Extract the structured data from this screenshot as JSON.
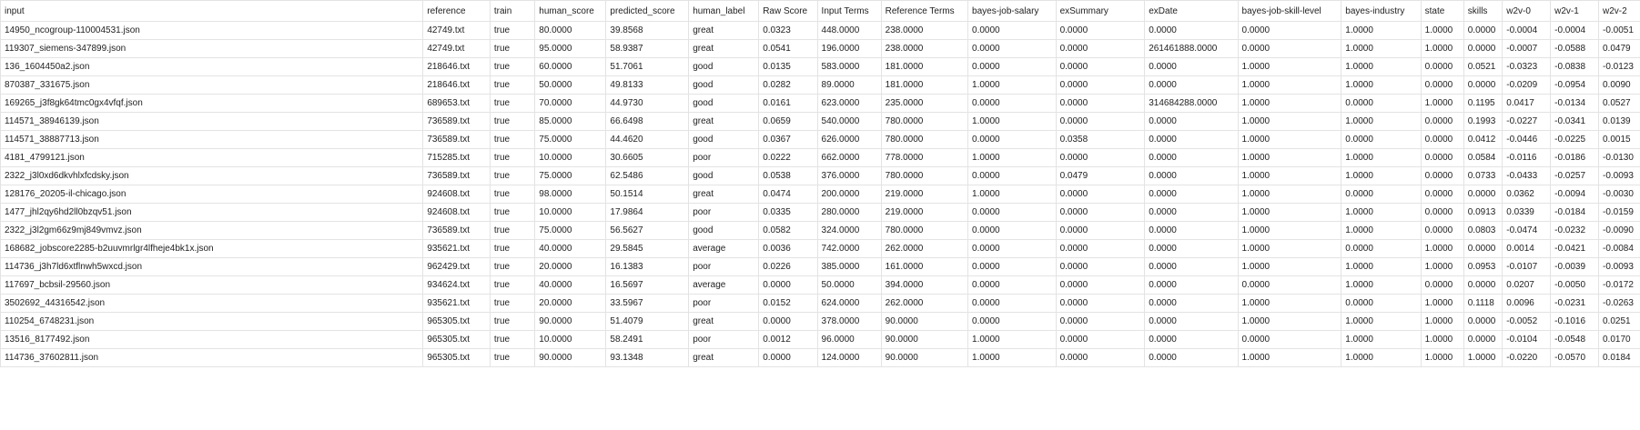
{
  "columns": [
    "input",
    "reference",
    "train",
    "human_score",
    "predicted_score",
    "human_label",
    "Raw Score",
    "Input Terms",
    "Reference Terms",
    "bayes-job-salary",
    "exSummary",
    "exDate",
    "bayes-job-skill-level",
    "bayes-industry",
    "state",
    "skills",
    "w2v-0",
    "w2v-1",
    "w2v-2"
  ],
  "rows": [
    [
      "14950_ncogroup-110004531.json",
      "42749.txt",
      "true",
      "80.0000",
      "39.8568",
      "great",
      "0.0323",
      "448.0000",
      "238.0000",
      "0.0000",
      "0.0000",
      "0.0000",
      "0.0000",
      "1.0000",
      "1.0000",
      "0.0000",
      "-0.0004",
      "-0.0004",
      "-0.0051"
    ],
    [
      "119307_siemens-347899.json",
      "42749.txt",
      "true",
      "95.0000",
      "58.9387",
      "great",
      "0.0541",
      "196.0000",
      "238.0000",
      "0.0000",
      "0.0000",
      "261461888.0000",
      "0.0000",
      "1.0000",
      "1.0000",
      "0.0000",
      "-0.0007",
      "-0.0588",
      "0.0479"
    ],
    [
      "136_1604450a2.json",
      "218646.txt",
      "true",
      "60.0000",
      "51.7061",
      "good",
      "0.0135",
      "583.0000",
      "181.0000",
      "0.0000",
      "0.0000",
      "0.0000",
      "1.0000",
      "1.0000",
      "0.0000",
      "0.0521",
      "-0.0323",
      "-0.0838",
      "-0.0123"
    ],
    [
      "870387_331675.json",
      "218646.txt",
      "true",
      "50.0000",
      "49.8133",
      "good",
      "0.0282",
      "89.0000",
      "181.0000",
      "1.0000",
      "0.0000",
      "0.0000",
      "1.0000",
      "1.0000",
      "0.0000",
      "0.0000",
      "-0.0209",
      "-0.0954",
      "0.0090"
    ],
    [
      "169265_j3f8gk64tmc0gx4vfqf.json",
      "689653.txt",
      "true",
      "70.0000",
      "44.9730",
      "good",
      "0.0161",
      "623.0000",
      "235.0000",
      "0.0000",
      "0.0000",
      "314684288.0000",
      "1.0000",
      "0.0000",
      "1.0000",
      "0.1195",
      "0.0417",
      "-0.0134",
      "0.0527"
    ],
    [
      "114571_38946139.json",
      "736589.txt",
      "true",
      "85.0000",
      "66.6498",
      "great",
      "0.0659",
      "540.0000",
      "780.0000",
      "1.0000",
      "0.0000",
      "0.0000",
      "1.0000",
      "1.0000",
      "0.0000",
      "0.1993",
      "-0.0227",
      "-0.0341",
      "0.0139"
    ],
    [
      "114571_38887713.json",
      "736589.txt",
      "true",
      "75.0000",
      "44.4620",
      "good",
      "0.0367",
      "626.0000",
      "780.0000",
      "0.0000",
      "0.0358",
      "0.0000",
      "1.0000",
      "0.0000",
      "0.0000",
      "0.0412",
      "-0.0446",
      "-0.0225",
      "0.0015"
    ],
    [
      "4181_4799121.json",
      "715285.txt",
      "true",
      "10.0000",
      "30.6605",
      "poor",
      "0.0222",
      "662.0000",
      "778.0000",
      "1.0000",
      "0.0000",
      "0.0000",
      "1.0000",
      "1.0000",
      "0.0000",
      "0.0584",
      "-0.0116",
      "-0.0186",
      "-0.0130"
    ],
    [
      "2322_j3l0xd6dkvhlxfcdsky.json",
      "736589.txt",
      "true",
      "75.0000",
      "62.5486",
      "good",
      "0.0538",
      "376.0000",
      "780.0000",
      "0.0000",
      "0.0479",
      "0.0000",
      "1.0000",
      "1.0000",
      "0.0000",
      "0.0733",
      "-0.0433",
      "-0.0257",
      "-0.0093"
    ],
    [
      "128176_20205-il-chicago.json",
      "924608.txt",
      "true",
      "98.0000",
      "50.1514",
      "great",
      "0.0474",
      "200.0000",
      "219.0000",
      "1.0000",
      "0.0000",
      "0.0000",
      "1.0000",
      "0.0000",
      "0.0000",
      "0.0000",
      "0.0362",
      "-0.0094",
      "-0.0030"
    ],
    [
      "1477_jhl2qy6hd2ll0bzqv51.json",
      "924608.txt",
      "true",
      "10.0000",
      "17.9864",
      "poor",
      "0.0335",
      "280.0000",
      "219.0000",
      "0.0000",
      "0.0000",
      "0.0000",
      "1.0000",
      "1.0000",
      "0.0000",
      "0.0913",
      "0.0339",
      "-0.0184",
      "-0.0159"
    ],
    [
      "2322_j3l2gm66z9mj849vmvz.json",
      "736589.txt",
      "true",
      "75.0000",
      "56.5627",
      "good",
      "0.0582",
      "324.0000",
      "780.0000",
      "0.0000",
      "0.0000",
      "0.0000",
      "1.0000",
      "1.0000",
      "0.0000",
      "0.0803",
      "-0.0474",
      "-0.0232",
      "-0.0090"
    ],
    [
      "168682_jobscore2285-b2uuvmrlgr4lfheje4bk1x.json",
      "935621.txt",
      "true",
      "40.0000",
      "29.5845",
      "average",
      "0.0036",
      "742.0000",
      "262.0000",
      "0.0000",
      "0.0000",
      "0.0000",
      "1.0000",
      "0.0000",
      "1.0000",
      "0.0000",
      "0.0014",
      "-0.0421",
      "-0.0084"
    ],
    [
      "114736_j3h7ld6xtflnwh5wxcd.json",
      "962429.txt",
      "true",
      "20.0000",
      "16.1383",
      "poor",
      "0.0226",
      "385.0000",
      "161.0000",
      "0.0000",
      "0.0000",
      "0.0000",
      "1.0000",
      "1.0000",
      "1.0000",
      "0.0953",
      "-0.0107",
      "-0.0039",
      "-0.0093"
    ],
    [
      "117697_bcbsil-29560.json",
      "934624.txt",
      "true",
      "40.0000",
      "16.5697",
      "average",
      "0.0000",
      "50.0000",
      "394.0000",
      "0.0000",
      "0.0000",
      "0.0000",
      "0.0000",
      "1.0000",
      "0.0000",
      "0.0000",
      "0.0207",
      "-0.0050",
      "-0.0172"
    ],
    [
      "3502692_44316542.json",
      "935621.txt",
      "true",
      "20.0000",
      "33.5967",
      "poor",
      "0.0152",
      "624.0000",
      "262.0000",
      "0.0000",
      "0.0000",
      "0.0000",
      "1.0000",
      "0.0000",
      "1.0000",
      "0.1118",
      "0.0096",
      "-0.0231",
      "-0.0263"
    ],
    [
      "110254_6748231.json",
      "965305.txt",
      "true",
      "90.0000",
      "51.4079",
      "great",
      "0.0000",
      "378.0000",
      "90.0000",
      "0.0000",
      "0.0000",
      "0.0000",
      "1.0000",
      "1.0000",
      "1.0000",
      "0.0000",
      "-0.0052",
      "-0.1016",
      "0.0251"
    ],
    [
      "13516_8177492.json",
      "965305.txt",
      "true",
      "10.0000",
      "58.2491",
      "poor",
      "0.0012",
      "96.0000",
      "90.0000",
      "1.0000",
      "0.0000",
      "0.0000",
      "0.0000",
      "1.0000",
      "1.0000",
      "0.0000",
      "-0.0104",
      "-0.0548",
      "0.0170"
    ],
    [
      "114736_37602811.json",
      "965305.txt",
      "true",
      "90.0000",
      "93.1348",
      "great",
      "0.0000",
      "124.0000",
      "90.0000",
      "1.0000",
      "0.0000",
      "0.0000",
      "1.0000",
      "1.0000",
      "1.0000",
      "1.0000",
      "-0.0220",
      "-0.0570",
      "0.0184"
    ]
  ]
}
